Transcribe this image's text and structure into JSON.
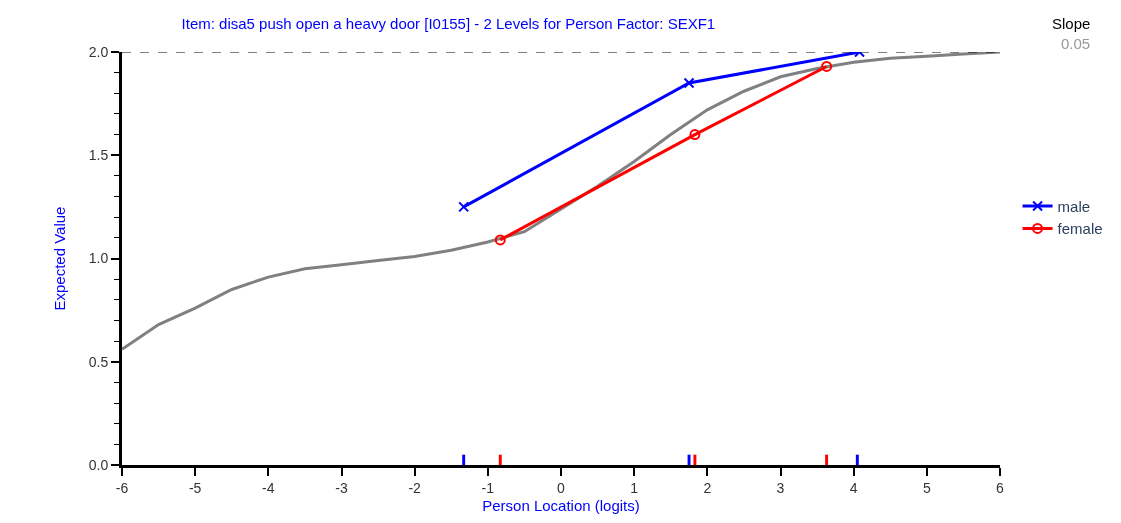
{
  "chart_data": {
    "type": "line",
    "title": "Item: disa5 push open a heavy door [I0155] - 2 Levels for Person Factor: SEXF1",
    "xlabel": "Person Location (logits)",
    "ylabel": "Expected Value",
    "xlim": [
      -6,
      6
    ],
    "xticks": [
      -6,
      -5,
      -4,
      -3,
      -2,
      -1,
      0,
      1,
      2,
      3,
      4,
      5,
      6
    ],
    "ylim": [
      0,
      2
    ],
    "yticks": [
      {
        "value": 0,
        "label": "0.0"
      },
      0.5,
      {
        "value": 1,
        "label": "1.0"
      },
      1.5,
      {
        "value": 2,
        "label": "2.0"
      }
    ],
    "legend": "right",
    "annotations": [
      "Slope",
      "0.05"
    ],
    "ref_lines": [
      {
        "axis": "y",
        "value": 2,
        "color": "#000000",
        "line_style": "dashed"
      }
    ],
    "series": [
      {
        "color": "#808080",
        "marker": "none",
        "x": [
          -6,
          -5.5,
          -5,
          -4.5,
          -4,
          -3.5,
          -3,
          -2.5,
          -2,
          -1.5,
          -1,
          -0.5,
          0,
          0.5,
          1,
          1.5,
          2,
          2.5,
          3,
          3.5,
          4,
          4.5,
          5,
          5.5,
          6
        ],
        "values": [
          0.56,
          0.68,
          0.76,
          0.85,
          0.91,
          0.95,
          0.97,
          0.99,
          1.01,
          1.04,
          1.08,
          1.13,
          1.24,
          1.35,
          1.47,
          1.6,
          1.72,
          1.81,
          1.88,
          1.92,
          1.95,
          1.97,
          1.98,
          1.99,
          2.0
        ]
      },
      {
        "name": "male",
        "color": "#0000ff",
        "marker": "cross",
        "x": [
          -1.33,
          1.75,
          4.08
        ],
        "values": [
          1.25,
          1.85,
          2.0
        ]
      },
      {
        "name": "female",
        "color": "#ff0000",
        "marker": "circle",
        "x": [
          -0.83,
          1.83,
          3.63
        ],
        "values": [
          1.09,
          1.6,
          1.93
        ]
      },
      {
        "type": "bar",
        "color": "#0000ff",
        "x": [
          -1.33,
          1.75,
          4.05
        ],
        "values": [
          0.05,
          0.05,
          0.05
        ]
      },
      {
        "type": "bar",
        "color": "#ff0000",
        "x": [
          -0.83,
          1.83,
          3.63
        ],
        "values": [
          0.05,
          0.05,
          0.05
        ]
      }
    ]
  }
}
